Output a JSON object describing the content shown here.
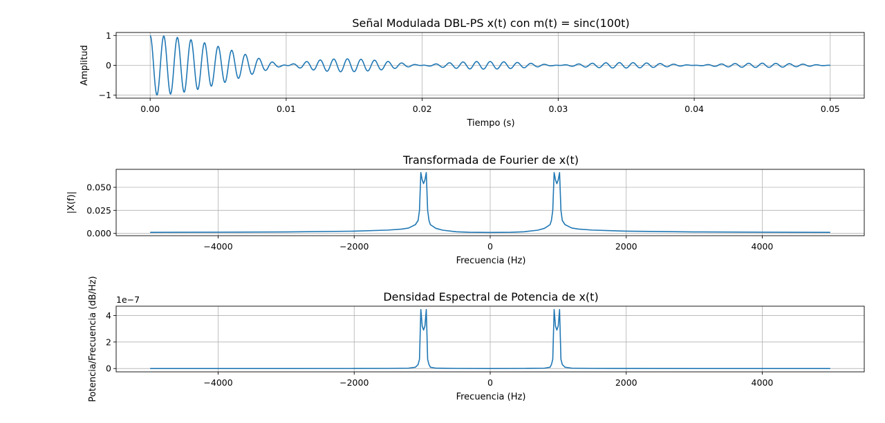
{
  "chart_data": [
    {
      "type": "line",
      "title": "Señal Modulada DBL-PS x(t) con m(t) = sinc(100t)",
      "xlabel": "Tiempo (s)",
      "ylabel": "Amplitud",
      "xlim": [
        -0.0025,
        0.0525
      ],
      "ylim": [
        -1.1,
        1.1
      ],
      "xticks": [
        0.0,
        0.01,
        0.02,
        0.03,
        0.04,
        0.05
      ],
      "xtick_labels": [
        "0.00",
        "0.01",
        "0.02",
        "0.03",
        "0.04",
        "0.05"
      ],
      "yticks": [
        -1,
        0,
        1
      ],
      "ytick_labels": [
        "−1",
        "0",
        "1"
      ],
      "grid": true,
      "color": "#1f77b4",
      "series": [
        {
          "x": [
            0.0,
            0.0005,
            0.001,
            0.0015,
            0.002,
            0.0025,
            0.003,
            0.0035,
            0.004,
            0.0045,
            0.005,
            0.0055,
            0.006,
            0.0065,
            0.007,
            0.0075,
            0.008,
            0.0085,
            0.009,
            0.01,
            0.0125,
            0.015,
            0.0175,
            0.02,
            0.0225,
            0.025,
            0.0275,
            0.03,
            0.0325,
            0.035,
            0.0375,
            0.04,
            0.0425,
            0.045,
            0.0475,
            0.05
          ],
          "y": [
            1.0,
            -0.98,
            0.96,
            -0.93,
            0.88,
            -0.82,
            0.76,
            -0.69,
            0.62,
            -0.54,
            0.47,
            -0.39,
            0.32,
            -0.25,
            0.19,
            -0.13,
            0.09,
            -0.05,
            0.12,
            0.06,
            0.2,
            0.2,
            0.13,
            0.02,
            0.12,
            0.13,
            0.08,
            0.02,
            0.08,
            0.1,
            0.07,
            0.01,
            0.07,
            0.08,
            0.05,
            0.01
          ]
        }
      ]
    },
    {
      "type": "line",
      "title": "Transformada de Fourier de x(t)",
      "xlabel": "Frecuencia (Hz)",
      "ylabel": "|X(f)|",
      "xlim": [
        -5500,
        5500
      ],
      "ylim": [
        -0.0025,
        0.0695
      ],
      "xticks": [
        -4000,
        -2000,
        0,
        2000,
        4000
      ],
      "xtick_labels": [
        "−4000",
        "−2000",
        "0",
        "2000",
        "4000"
      ],
      "yticks": [
        0.0,
        0.025,
        0.05
      ],
      "ytick_labels": [
        "0.000",
        "0.025",
        "0.050"
      ],
      "grid": true,
      "color": "#1f77b4",
      "series": [
        {
          "x": [
            -5000,
            -4000,
            -3000,
            -2000,
            -1500,
            -1300,
            -1200,
            -1100,
            -1060,
            -1040,
            -1020,
            -1000,
            -980,
            -960,
            -940,
            -920,
            -900,
            -880,
            -800,
            -700,
            -500,
            -300,
            0,
            300,
            500,
            700,
            800,
            880,
            900,
            920,
            940,
            960,
            980,
            1000,
            1020,
            1040,
            1060,
            1100,
            1200,
            1300,
            1500,
            2000,
            3000,
            4000,
            5000
          ],
          "y": [
            0.0011,
            0.0013,
            0.0016,
            0.0024,
            0.0036,
            0.0047,
            0.0058,
            0.0095,
            0.014,
            0.025,
            0.066,
            0.058,
            0.054,
            0.058,
            0.066,
            0.025,
            0.014,
            0.0095,
            0.0055,
            0.0035,
            0.0018,
            0.0012,
            0.001,
            0.0012,
            0.0018,
            0.0035,
            0.0055,
            0.0095,
            0.014,
            0.025,
            0.066,
            0.058,
            0.054,
            0.058,
            0.066,
            0.025,
            0.014,
            0.0095,
            0.0058,
            0.0047,
            0.0036,
            0.0024,
            0.0016,
            0.0013,
            0.0011
          ]
        }
      ]
    },
    {
      "type": "line",
      "title": "Densidad Espectral de Potencia de x(t)",
      "xlabel": "Frecuencia (Hz)",
      "ylabel": "Potencia/Frecuencia (dB/Hz)",
      "scale_label": "1e−7",
      "xlim": [
        -5500,
        5500
      ],
      "ylim": [
        -0.25,
        4.7
      ],
      "xticks": [
        -4000,
        -2000,
        0,
        2000,
        4000
      ],
      "xtick_labels": [
        "−4000",
        "−2000",
        "0",
        "2000",
        "4000"
      ],
      "yticks": [
        0,
        2,
        4
      ],
      "ytick_labels": [
        "0",
        "2",
        "4"
      ],
      "grid": true,
      "color": "#1f77b4",
      "series": [
        {
          "x": [
            -5000,
            -3000,
            -2000,
            -1500,
            -1200,
            -1100,
            -1060,
            -1040,
            -1020,
            -1000,
            -980,
            -960,
            -940,
            -920,
            -900,
            -880,
            -800,
            -500,
            0,
            500,
            800,
            880,
            900,
            920,
            940,
            960,
            980,
            1000,
            1020,
            1040,
            1060,
            1100,
            1200,
            1500,
            2000,
            3000,
            5000
          ],
          "y": [
            0.0,
            0.0,
            0.005,
            0.01,
            0.03,
            0.1,
            0.3,
            0.7,
            4.45,
            3.2,
            2.9,
            3.2,
            4.45,
            0.7,
            0.3,
            0.1,
            0.03,
            0.01,
            0.0,
            0.01,
            0.03,
            0.1,
            0.3,
            0.7,
            4.45,
            3.2,
            2.9,
            3.2,
            4.45,
            0.7,
            0.3,
            0.1,
            0.03,
            0.01,
            0.005,
            0.0,
            0.0
          ]
        }
      ]
    }
  ]
}
